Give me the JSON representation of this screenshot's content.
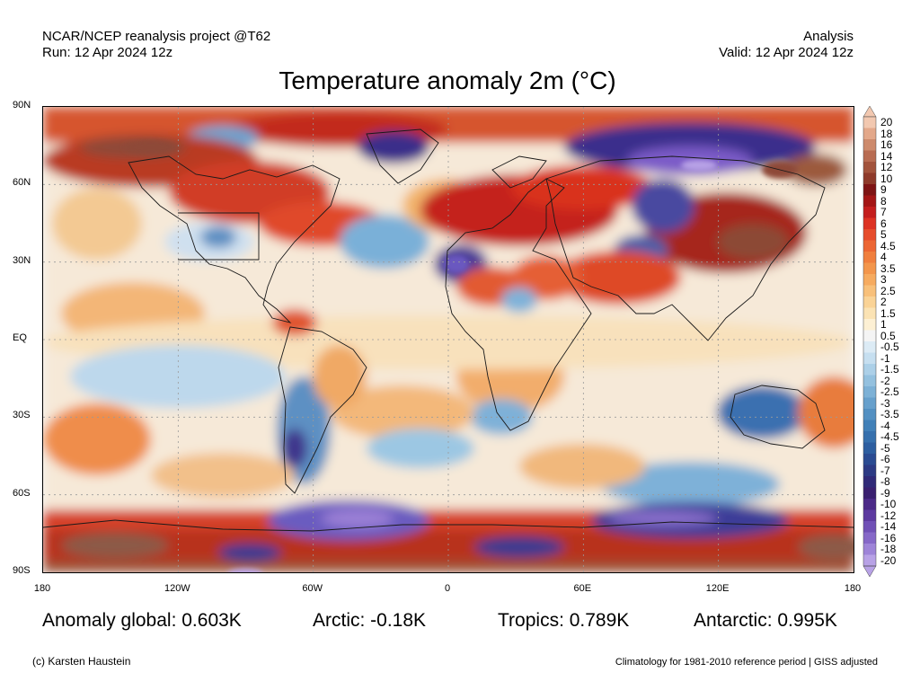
{
  "header": {
    "project": "NCAR/NCEP reanalysis project @T62",
    "run": "Run: 12 Apr 2024 12z",
    "type": "Analysis",
    "valid": "Valid: 12 Apr 2024 12z"
  },
  "title": "Temperature anomaly 2m (°C)",
  "map": {
    "lat_labels": [
      "90N",
      "60N",
      "30N",
      "EQ",
      "30S",
      "60S",
      "90S"
    ],
    "lat_values": [
      90,
      60,
      30,
      0,
      -30,
      -60,
      -90
    ],
    "lon_labels": [
      "180",
      "120W",
      "60W",
      "0",
      "60E",
      "120E",
      "180"
    ],
    "lon_values": [
      -180,
      -120,
      -60,
      0,
      60,
      120,
      180
    ],
    "grid": true
  },
  "colorbar": {
    "labels": [
      "20",
      "18",
      "16",
      "14",
      "12",
      "10",
      "9",
      "8",
      "7",
      "6",
      "5",
      "4.5",
      "4",
      "3.5",
      "3",
      "2.5",
      "2",
      "1.5",
      "1",
      "0.5",
      "-0.5",
      "-1",
      "-1.5",
      "-2",
      "-2.5",
      "-3",
      "-3.5",
      "-4",
      "-4.5",
      "-5",
      "-6",
      "-7",
      "-8",
      "-9",
      "-10",
      "-12",
      "-14",
      "-16",
      "-18",
      "-20"
    ],
    "colors": [
      "#f2c8b0",
      "#e3a88a",
      "#cd8a6c",
      "#b86c52",
      "#a2533c",
      "#8e3a2a",
      "#7e1414",
      "#a41616",
      "#c41e1e",
      "#dd3324",
      "#e64c2c",
      "#ec6634",
      "#f07f3e",
      "#f3964c",
      "#f6ab60",
      "#f8c07a",
      "#fad396",
      "#fbe3b4",
      "#fdf0d4",
      "#f4f4f4",
      "#dcebf5",
      "#c6dff0",
      "#acd0e8",
      "#94c1df",
      "#7db1d6",
      "#67a0cc",
      "#5390c2",
      "#4180b8",
      "#3670ad",
      "#2d5ea0",
      "#2a4b92",
      "#2c3a84",
      "#302a78",
      "#3a2070",
      "#4c2a88",
      "#5d3aa0",
      "#7050b6",
      "#8668c8",
      "#9e84d8",
      "#b8a2e6"
    ]
  },
  "stats": {
    "global": "Anomaly global: 0.603K",
    "arctic": "Arctic: -0.18K",
    "tropics": "Tropics: 0.789K",
    "antarctic": "Antarctic: 0.995K"
  },
  "footer": {
    "credit": "(c) Karsten Haustein",
    "note": "Climatology for 1981-2010 reference period | GISS adjusted"
  }
}
